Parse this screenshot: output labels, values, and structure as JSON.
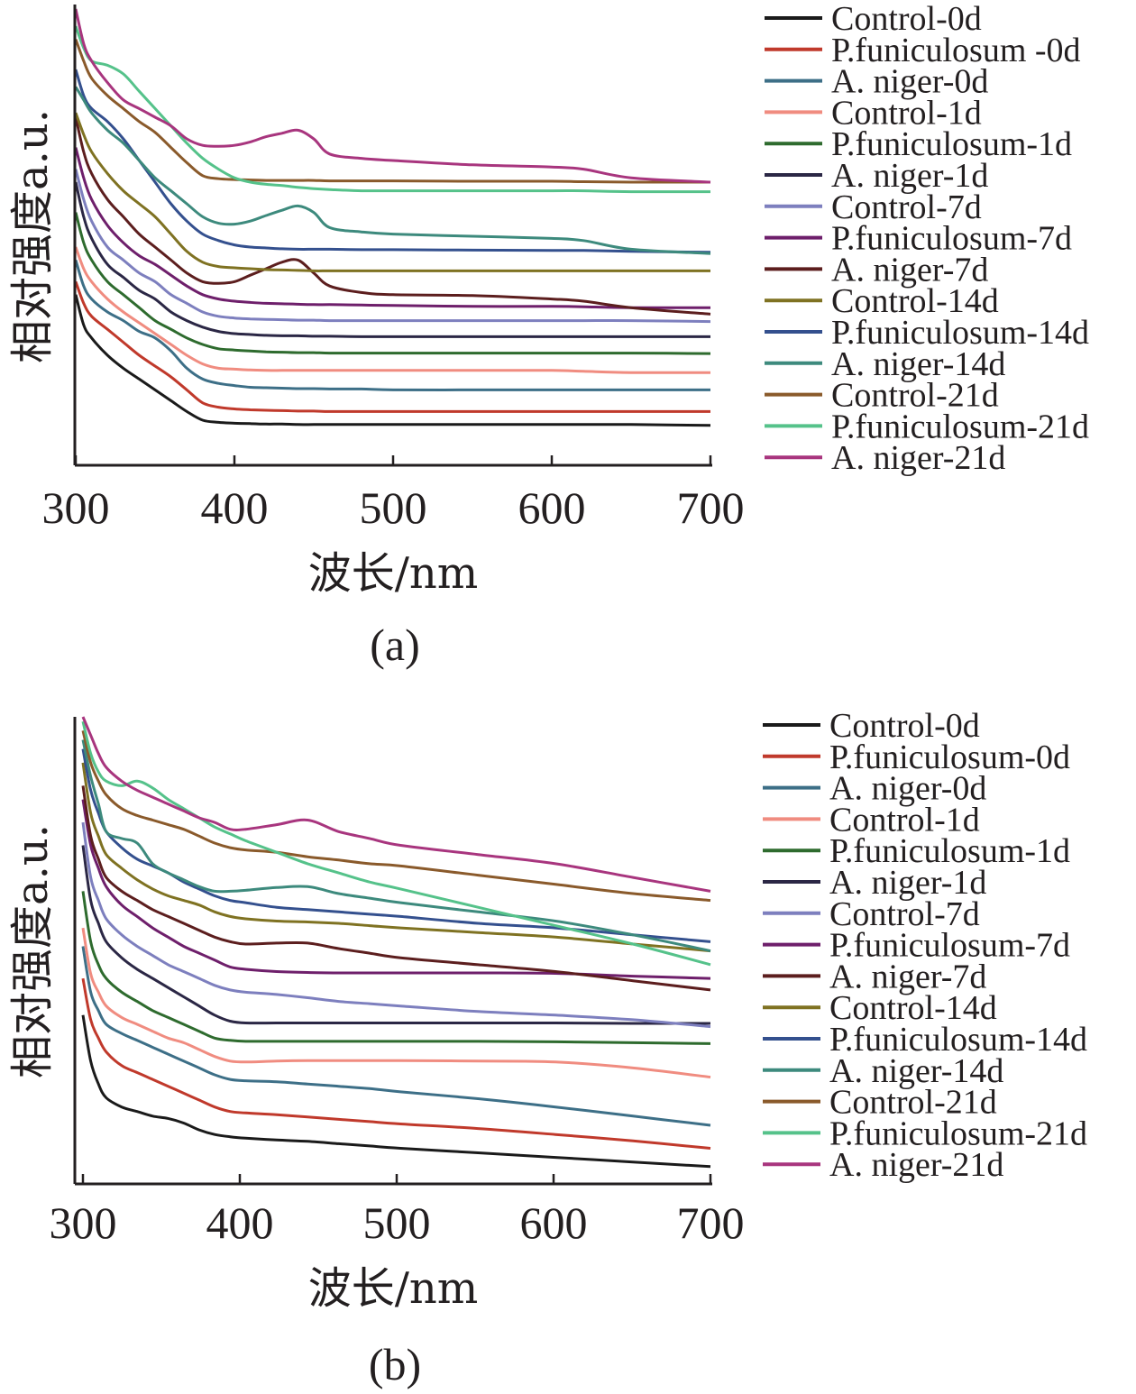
{
  "chart_data": [
    {
      "type": "line",
      "caption": "(a)",
      "xlabel": "波长/nm",
      "ylabel": "相对强度a.u.",
      "x_ticks": [
        300,
        400,
        500,
        600,
        700
      ],
      "xlim": [
        300,
        700
      ],
      "ylim": [
        0,
        100
      ],
      "y_ticks_shown": false,
      "grid": false,
      "legend_position": "right",
      "x": [
        300,
        305,
        310,
        320,
        330,
        340,
        350,
        360,
        370,
        380,
        390,
        400,
        410,
        420,
        430,
        440,
        450,
        460,
        480,
        500,
        550,
        600,
        620,
        650,
        700
      ],
      "series": [
        {
          "name": "Control-0d",
          "color": "#1a1a1a",
          "values": [
            34,
            27,
            24,
            20,
            17,
            14.5,
            12,
            9.5,
            7,
            5,
            4.5,
            4.3,
            4.2,
            4.1,
            4.1,
            4,
            4,
            4,
            4,
            4,
            4,
            4,
            4,
            4,
            3.8
          ]
        },
        {
          "name": "P.funiculosum -0d",
          "color": "#c0392b",
          "values": [
            37,
            32,
            29,
            26,
            23,
            20,
            17.5,
            15,
            12,
            9,
            8,
            7.6,
            7.4,
            7.3,
            7.2,
            7.1,
            7.1,
            7,
            7,
            7,
            7,
            7,
            7,
            7,
            7
          ]
        },
        {
          "name": "A. niger-0d",
          "color": "#3d6f87",
          "values": [
            42,
            36,
            33,
            30,
            28,
            25.5,
            24,
            21,
            17,
            14.5,
            13.5,
            13,
            12.6,
            12.5,
            12.4,
            12.3,
            12.3,
            12.2,
            12.2,
            12,
            12,
            12,
            12,
            12,
            12
          ]
        },
        {
          "name": "Control-1d",
          "color": "#f08c80",
          "values": [
            45,
            40,
            37,
            33,
            30,
            27.5,
            25,
            22.5,
            20,
            18,
            17,
            16.8,
            16.6,
            16.5,
            16.5,
            16.5,
            16.5,
            16.5,
            16.5,
            16.5,
            16.5,
            16.5,
            16.3,
            16,
            16
          ]
        },
        {
          "name": "P.funiculosum-1d",
          "color": "#2e6b2e",
          "values": [
            53,
            46,
            42,
            37,
            34,
            31,
            28,
            26,
            24,
            22.5,
            21.5,
            21.2,
            21,
            20.8,
            20.7,
            20.6,
            20.6,
            20.5,
            20.5,
            20.5,
            20.5,
            20.5,
            20.5,
            20.5,
            20.4
          ]
        },
        {
          "name": "A. niger-1d",
          "color": "#2b2745",
          "values": [
            60,
            52,
            47,
            41,
            38,
            35,
            33,
            30,
            28,
            26.5,
            25.5,
            25,
            24.8,
            24.6,
            24.5,
            24.5,
            24.4,
            24.4,
            24.3,
            24.3,
            24.3,
            24.3,
            24.3,
            24.3,
            24.3
          ]
        },
        {
          "name": "Control-7d",
          "color": "#7d7fbe",
          "values": [
            63,
            56,
            51,
            45,
            42,
            39,
            37,
            34,
            32,
            30,
            29,
            28.6,
            28.4,
            28.3,
            28.2,
            28.1,
            28.1,
            28,
            28,
            28,
            28,
            28,
            28,
            28,
            27.8
          ]
        },
        {
          "name": "P.funiculosum-7d",
          "color": "#6e1f6b",
          "values": [
            68,
            61,
            56,
            50,
            46,
            43,
            41,
            38.5,
            36,
            34,
            33,
            32.5,
            32.2,
            32,
            31.9,
            31.8,
            31.7,
            31.7,
            31.6,
            31.5,
            31.3,
            31.3,
            31.2,
            31,
            31
          ]
        },
        {
          "name": "A. niger-7d",
          "color": "#5c1e1e",
          "values": [
            75,
            67,
            62,
            56,
            52,
            48,
            45,
            42,
            39,
            37,
            36.6,
            37,
            38.5,
            40,
            41.5,
            42,
            39,
            36,
            34.5,
            34,
            33.8,
            33,
            32.5,
            31,
            29.5
          ]
        },
        {
          "name": "Control-14d",
          "color": "#7f7222",
          "values": [
            76,
            71,
            67,
            62,
            58,
            55,
            52,
            48,
            44,
            41.5,
            40.5,
            40.2,
            40,
            39.8,
            39.7,
            39.6,
            39.5,
            39.5,
            39.5,
            39.5,
            39.5,
            39.5,
            39.5,
            39.5,
            39.5
          ]
        },
        {
          "name": "P.funiculosum-14d",
          "color": "#34508e",
          "values": [
            86,
            80,
            77,
            74,
            70,
            65,
            60,
            55,
            51,
            48,
            46.5,
            45.5,
            45,
            44.8,
            44.6,
            44.5,
            44.5,
            44.5,
            44.4,
            44.4,
            44.3,
            44.2,
            44.2,
            44,
            43.8
          ]
        },
        {
          "name": "A. niger-14d",
          "color": "#3d8a7d",
          "values": [
            82,
            79,
            76,
            72,
            69,
            65,
            61,
            58,
            55,
            52,
            50.5,
            50.3,
            51,
            52.3,
            53.5,
            54.5,
            53,
            49.5,
            48.5,
            48,
            47.5,
            47,
            46.5,
            44.5,
            43.5
          ]
        },
        {
          "name": "Control-21d",
          "color": "#8a5a2b",
          "values": [
            93,
            88,
            84,
            80,
            77,
            74,
            71.5,
            68,
            64.5,
            61.5,
            60.8,
            60.6,
            60.5,
            60.4,
            60.4,
            60.4,
            60.4,
            60.3,
            60.3,
            60.3,
            60.2,
            60.2,
            60.1,
            60,
            60
          ]
        },
        {
          "name": "P.funiculosum-21d",
          "color": "#55c28a",
          "values": [
            96,
            91,
            88,
            87,
            85,
            81,
            77,
            73,
            69,
            65.5,
            63,
            61,
            60,
            59.5,
            59.2,
            58.8,
            58.5,
            58.3,
            58,
            58,
            58,
            58,
            58,
            57.8,
            57.8
          ]
        },
        {
          "name": "A. niger-21d",
          "color": "#a8357e",
          "values": [
            100,
            92,
            88,
            83,
            79,
            77,
            75,
            73,
            70,
            68.5,
            68.3,
            68.5,
            69.3,
            70.5,
            71.3,
            72,
            70,
            66.5,
            65.5,
            65,
            64,
            63.5,
            63,
            61,
            60
          ]
        }
      ]
    },
    {
      "type": "line",
      "caption": "(b)",
      "xlabel": "波长/nm",
      "ylabel": "相对强度a.u.",
      "x_ticks": [
        300,
        400,
        500,
        600,
        700
      ],
      "xlim": [
        295,
        700
      ],
      "ylim": [
        0,
        100
      ],
      "y_ticks_shown": false,
      "grid": false,
      "legend_position": "right",
      "x": [
        295,
        300,
        305,
        310,
        320,
        330,
        340,
        350,
        360,
        370,
        380,
        390,
        400,
        420,
        440,
        460,
        480,
        500,
        550,
        600,
        650,
        700
      ],
      "series": [
        {
          "name": "Control-0d",
          "color": "#1a1a1a",
          "values": [
            35,
            25,
            20,
            17,
            15,
            14,
            13,
            12.5,
            11.5,
            10,
            9,
            8.5,
            8.2,
            7.8,
            7.5,
            7,
            6.5,
            6,
            5,
            4,
            3,
            2
          ]
        },
        {
          "name": "P.funiculosum-0d",
          "color": "#c0392b",
          "values": [
            43,
            34,
            30,
            27,
            24,
            22.5,
            21,
            19.5,
            18,
            16.5,
            15,
            14,
            13.7,
            13.3,
            12.8,
            12.3,
            11.8,
            11.3,
            10.3,
            9,
            7.6,
            6
          ]
        },
        {
          "name": "A. niger-0d",
          "color": "#3d6f87",
          "values": [
            50,
            40,
            36,
            33,
            31,
            29.5,
            28,
            26.5,
            25,
            23.5,
            22,
            21,
            20.7,
            20.5,
            20,
            19.5,
            19,
            18.3,
            16.8,
            15,
            13,
            11
          ]
        },
        {
          "name": "Control-1d",
          "color": "#f08c80",
          "values": [
            54,
            44,
            40,
            37,
            34.5,
            33,
            31.5,
            30,
            29,
            27.5,
            26,
            25,
            24.8,
            25,
            25.1,
            25.1,
            25.1,
            25.1,
            25,
            24.8,
            23.5,
            21.5
          ]
        },
        {
          "name": "P.funiculosum-1d",
          "color": "#2e6b2e",
          "values": [
            62,
            51,
            46,
            43,
            40,
            38,
            36,
            34.5,
            33,
            31.5,
            30,
            29.5,
            29.3,
            29.3,
            29.3,
            29.3,
            29.3,
            29.3,
            29.3,
            29.2,
            29,
            28.8
          ]
        },
        {
          "name": "A. niger-1d",
          "color": "#2b2745",
          "values": [
            72,
            60,
            55,
            51,
            47.5,
            45,
            43,
            41,
            39,
            37,
            35,
            33.7,
            33.3,
            33.3,
            33.3,
            33.3,
            33.3,
            33.3,
            33.3,
            33.3,
            33.2,
            33.2
          ]
        },
        {
          "name": "Control-7d",
          "color": "#7d7fbe",
          "values": [
            77,
            65,
            60,
            56,
            52.5,
            50,
            48,
            46,
            44.5,
            43,
            41.5,
            40.5,
            40,
            39.5,
            38.8,
            38,
            37.5,
            37,
            35.8,
            35,
            34,
            32.5
          ]
        },
        {
          "name": "P.funiculosum-7d",
          "color": "#6e1f6b",
          "values": [
            82,
            72,
            67,
            63,
            59,
            56.5,
            54,
            52,
            50,
            48.5,
            47,
            45.5,
            45,
            44.5,
            44.3,
            44.2,
            44.2,
            44.2,
            44.2,
            44.1,
            43.5,
            43
          ]
        },
        {
          "name": "A. niger-7d",
          "color": "#5c1e1e",
          "values": [
            85,
            74,
            69,
            65,
            62,
            60,
            58,
            56.5,
            55,
            53.5,
            52,
            51,
            50.5,
            50.7,
            50.7,
            49.5,
            48.5,
            47.5,
            46,
            44.5,
            42.5,
            40.5
          ]
        },
        {
          "name": "Control-14d",
          "color": "#7f7222",
          "values": [
            90,
            79,
            74,
            70,
            67,
            64.5,
            62.5,
            61,
            60,
            59,
            57.5,
            56.5,
            56,
            55.5,
            55.3,
            55,
            54.5,
            54,
            53,
            52,
            50.5,
            49
          ]
        },
        {
          "name": "P.funiculosum-14d",
          "color": "#34508e",
          "values": [
            93,
            84,
            79,
            75,
            71.5,
            69,
            67.5,
            66,
            64,
            62.5,
            61,
            60,
            59.5,
            58.5,
            58,
            57.5,
            57,
            56.5,
            55,
            54,
            52.5,
            51
          ]
        },
        {
          "name": "A. niger-14d",
          "color": "#3d8a7d",
          "values": [
            95,
            87,
            81,
            75,
            73.5,
            72.5,
            68,
            66,
            64.5,
            63,
            62,
            62,
            62.2,
            62.8,
            63,
            61.5,
            60.5,
            59.5,
            57.5,
            55.5,
            52.5,
            49
          ]
        },
        {
          "name": "Control-21d",
          "color": "#8a5a2b",
          "values": [
            97,
            90,
            86,
            83,
            80,
            78.5,
            77.5,
            76.5,
            75.5,
            74,
            72.5,
            71.5,
            71,
            70.5,
            69.5,
            68.8,
            68,
            67.5,
            65.5,
            63.5,
            61.5,
            60
          ]
        },
        {
          "name": "P.funiculosum-21d",
          "color": "#55c28a",
          "values": [
            99,
            92,
            88,
            86,
            85,
            86,
            84.5,
            82,
            80,
            78,
            76,
            74.5,
            73,
            70.5,
            68,
            66,
            64,
            62.5,
            58.5,
            54.5,
            50.5,
            46
          ]
        },
        {
          "name": "A. niger-21d",
          "color": "#a8357e",
          "values": [
            100,
            96,
            92,
            89,
            86,
            84,
            82.5,
            81,
            79.5,
            78,
            77,
            75.5,
            75.5,
            76.5,
            77.5,
            75,
            73.5,
            72,
            70,
            68,
            65,
            62
          ]
        }
      ]
    }
  ]
}
